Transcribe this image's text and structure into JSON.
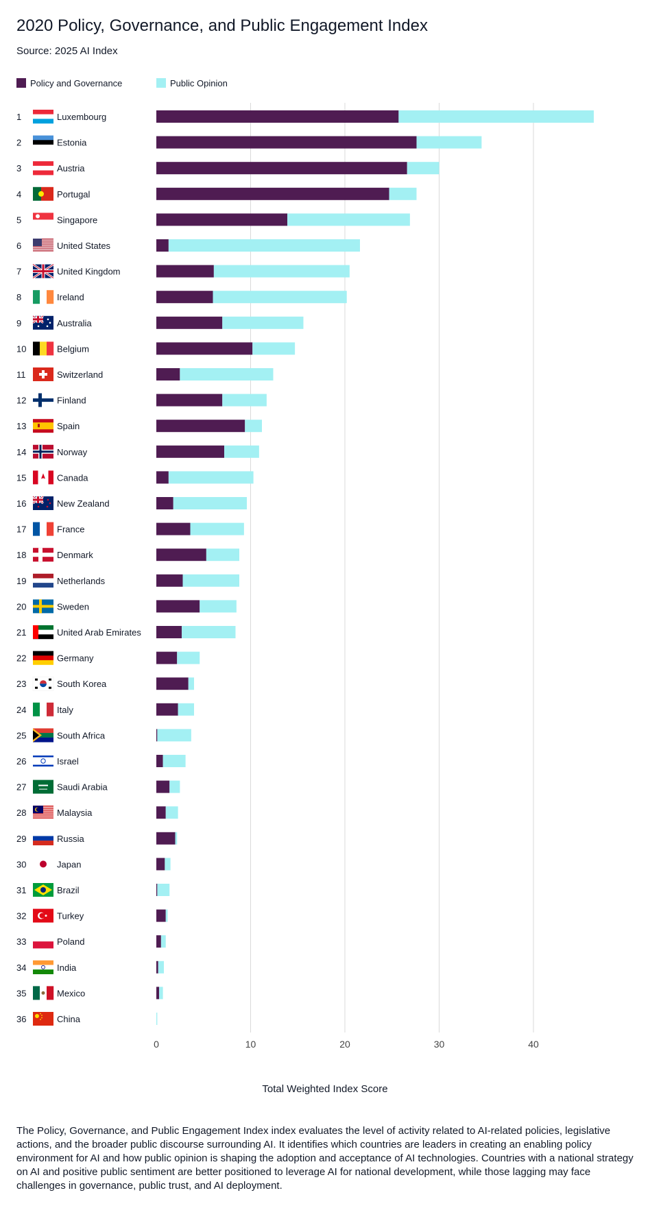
{
  "page": {
    "title": "2020 Policy, Governance, and Public Engagement Index",
    "subtitle": "Source: 2025 AI Index",
    "caption": "The Policy, Governance, and Public Engagement Index index evaluates the level of activity related to AI-related policies, legislative actions, and the broader public discourse surrounding AI. It identifies which countries are leaders in creating an enabling policy environment for AI and how public opinion is shaping the adoption and acceptance of AI technologies. Countries with a national strategy on AI and positive public sentiment are better positioned to leverage AI for national development, while those lagging may face challenges in governance, public trust, and AI deployment."
  },
  "colors": {
    "policy": "#4f1c52",
    "opinion": "#a3f0f3",
    "grid": "#d9d9d9"
  },
  "chart_data": {
    "type": "bar",
    "orientation": "horizontal",
    "stacked": true,
    "title": "2020 Policy, Governance, and Public Engagement Index",
    "xlabel": "Total Weighted Index Score",
    "ylabel": "",
    "xlim": [
      0,
      50
    ],
    "xticks": [
      0,
      10,
      20,
      30,
      40
    ],
    "grid": true,
    "legend_position": "top-left",
    "ranks": [
      "1",
      "2",
      "3",
      "4",
      "5",
      "6",
      "7",
      "8",
      "9",
      "10",
      "11",
      "12",
      "13",
      "14",
      "15",
      "16",
      "17",
      "18",
      "19",
      "20",
      "21",
      "22",
      "23",
      "24",
      "25",
      "26",
      "27",
      "28",
      "29",
      "30",
      "31",
      "32",
      "33",
      "34",
      "35",
      "36"
    ],
    "categories": [
      "Luxembourg",
      "Estonia",
      "Austria",
      "Portugal",
      "Singapore",
      "United States",
      "United Kingdom",
      "Ireland",
      "Australia",
      "Belgium",
      "Switzerland",
      "Finland",
      "Spain",
      "Norway",
      "Canada",
      "New Zealand",
      "France",
      "Denmark",
      "Netherlands",
      "Sweden",
      "United Arab Emirates",
      "Germany",
      "South Korea",
      "Italy",
      "South Africa",
      "Israel",
      "Saudi Arabia",
      "Malaysia",
      "Russia",
      "Japan",
      "Brazil",
      "Turkey",
      "Poland",
      "India",
      "Mexico",
      "China"
    ],
    "flags": [
      "flag-luxembourg",
      "flag-estonia",
      "flag-austria",
      "flag-portugal",
      "flag-singapore",
      "flag-united-states",
      "flag-united-kingdom",
      "flag-ireland",
      "flag-australia",
      "flag-belgium",
      "flag-switzerland",
      "flag-finland",
      "flag-spain",
      "flag-norway",
      "flag-canada",
      "flag-new-zealand",
      "flag-france",
      "flag-denmark",
      "flag-netherlands",
      "flag-sweden",
      "flag-uae",
      "flag-germany",
      "flag-south-korea",
      "flag-italy",
      "flag-south-africa",
      "flag-israel",
      "flag-saudi-arabia",
      "flag-malaysia",
      "flag-russia",
      "flag-japan",
      "flag-brazil",
      "flag-turkey",
      "flag-poland",
      "flag-india",
      "flag-mexico",
      "flag-china"
    ],
    "series": [
      {
        "name": "Policy and Governance",
        "values": [
          25.7,
          27.6,
          26.6,
          24.7,
          13.9,
          1.3,
          6.1,
          6.0,
          7.0,
          10.2,
          2.5,
          7.0,
          9.4,
          7.2,
          1.3,
          1.8,
          3.6,
          5.3,
          2.8,
          4.6,
          2.7,
          2.2,
          3.4,
          2.3,
          0.1,
          0.7,
          1.4,
          1.0,
          2.0,
          0.9,
          0.1,
          1.0,
          0.5,
          0.2,
          0.3,
          0.0
        ]
      },
      {
        "name": "Public Opinion",
        "values": [
          20.7,
          6.9,
          3.4,
          2.9,
          13.0,
          20.3,
          14.4,
          14.2,
          8.6,
          4.5,
          9.9,
          4.7,
          1.8,
          3.7,
          9.0,
          7.8,
          5.7,
          3.5,
          6.0,
          3.9,
          5.7,
          2.4,
          0.6,
          1.7,
          3.6,
          2.4,
          1.1,
          1.3,
          0.2,
          0.6,
          1.3,
          0.2,
          0.5,
          0.6,
          0.4,
          0.1
        ]
      }
    ]
  }
}
